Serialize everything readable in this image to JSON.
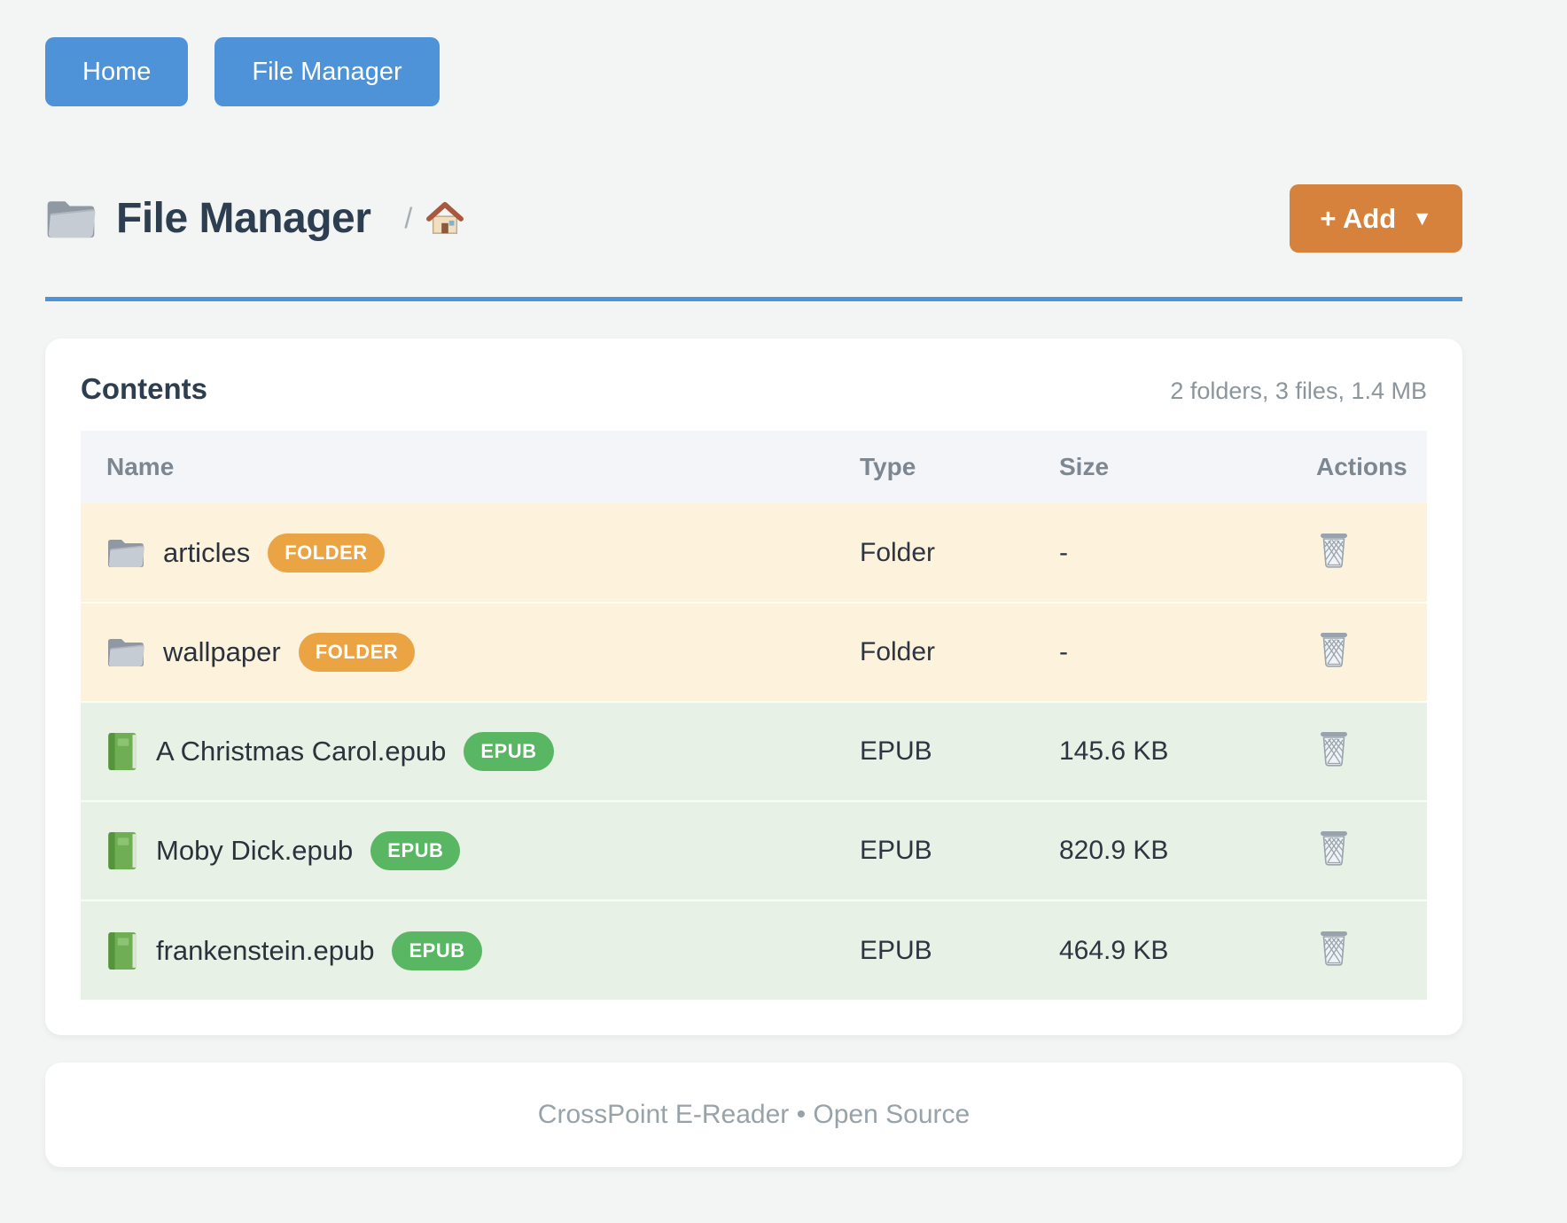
{
  "nav": {
    "buttons": [
      {
        "label": "Home"
      },
      {
        "label": "File Manager"
      }
    ]
  },
  "header": {
    "title": "File Manager",
    "title_icon": "folder-icon",
    "breadcrumb_separator": "/",
    "breadcrumb_home_icon": "house-icon",
    "add_button": {
      "label": "+ Add",
      "caret": "▼"
    }
  },
  "contents": {
    "heading": "Contents",
    "summary": "2 folders, 3 files, 1.4 MB",
    "table": {
      "columns": [
        "Name",
        "Type",
        "Size",
        "Actions"
      ],
      "rows": [
        {
          "kind": "folder",
          "icon": "folder-icon",
          "name": "articles",
          "badge": "FOLDER",
          "type": "Folder",
          "size": "-",
          "action_icon": "trash-icon"
        },
        {
          "kind": "folder",
          "icon": "folder-icon",
          "name": "wallpaper",
          "badge": "FOLDER",
          "type": "Folder",
          "size": "-",
          "action_icon": "trash-icon"
        },
        {
          "kind": "epub",
          "icon": "book-icon",
          "name": "A Christmas Carol.epub",
          "badge": "EPUB",
          "type": "EPUB",
          "size": "145.6 KB",
          "action_icon": "trash-icon"
        },
        {
          "kind": "epub",
          "icon": "book-icon",
          "name": "Moby Dick.epub",
          "badge": "EPUB",
          "type": "EPUB",
          "size": "820.9 KB",
          "action_icon": "trash-icon"
        },
        {
          "kind": "epub",
          "icon": "book-icon",
          "name": "frankenstein.epub",
          "badge": "EPUB",
          "type": "EPUB",
          "size": "464.9 KB",
          "action_icon": "trash-icon"
        }
      ]
    }
  },
  "footer": {
    "text": "CrossPoint E-Reader • Open Source"
  },
  "colors": {
    "page_bg": "#f3f4f4",
    "accent_blue": "#4e93d7",
    "accent_orange": "#d6823c",
    "badge_folder": "#eba443",
    "badge_epub": "#59b663",
    "row_folder_bg": "#fdf3dc",
    "row_epub_bg": "#e7f1e6",
    "table_head_bg": "#f3f5f8",
    "heading_color": "#2d3e50",
    "muted_color": "#8b959c"
  }
}
